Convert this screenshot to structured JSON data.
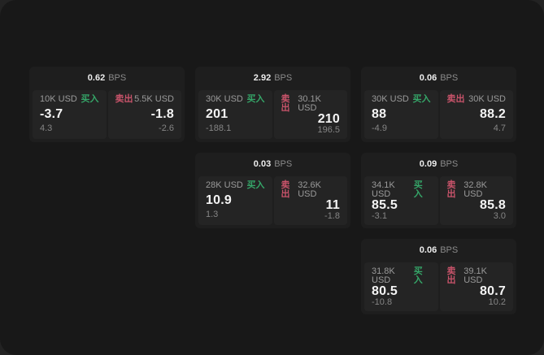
{
  "labels": {
    "bps_suffix": "BPS",
    "buy": "买入",
    "sell": "卖出"
  },
  "colors": {
    "buy": "#35a568",
    "sell": "#c8536a",
    "page_bg": "#181818",
    "card_bg": "#1e1e1e",
    "panel_bg": "#242424"
  },
  "cards": [
    {
      "row": 1,
      "col": 1,
      "bps": "0.62",
      "buy": {
        "size": "10K USD",
        "price": "-3.7",
        "delta": "4.3"
      },
      "sell": {
        "size": "5.5K USD",
        "price": "-1.8",
        "delta": "-2.6"
      }
    },
    {
      "row": 1,
      "col": 2,
      "bps": "2.92",
      "buy": {
        "size": "30K USD",
        "price": "201",
        "delta": "-188.1"
      },
      "sell": {
        "size": "30.1K USD",
        "price": "210",
        "delta": "196.5"
      }
    },
    {
      "row": 1,
      "col": 3,
      "bps": "0.06",
      "buy": {
        "size": "30K USD",
        "price": "88",
        "delta": "-4.9"
      },
      "sell": {
        "size": "30K USD",
        "price": "88.2",
        "delta": "4.7"
      }
    },
    {
      "row": 2,
      "col": 2,
      "bps": "0.03",
      "buy": {
        "size": "28K USD",
        "price": "10.9",
        "delta": "1.3"
      },
      "sell": {
        "size": "32.6K USD",
        "price": "11",
        "delta": "-1.8"
      }
    },
    {
      "row": 2,
      "col": 3,
      "bps": "0.09",
      "buy": {
        "size": "34.1K USD",
        "price": "85.5",
        "delta": "-3.1"
      },
      "sell": {
        "size": "32.8K USD",
        "price": "85.8",
        "delta": "3.0"
      }
    },
    {
      "row": 3,
      "col": 3,
      "bps": "0.06",
      "buy": {
        "size": "31.8K USD",
        "price": "80.5",
        "delta": "-10.8"
      },
      "sell": {
        "size": "39.1K USD",
        "price": "80.7",
        "delta": "10.2"
      }
    }
  ]
}
